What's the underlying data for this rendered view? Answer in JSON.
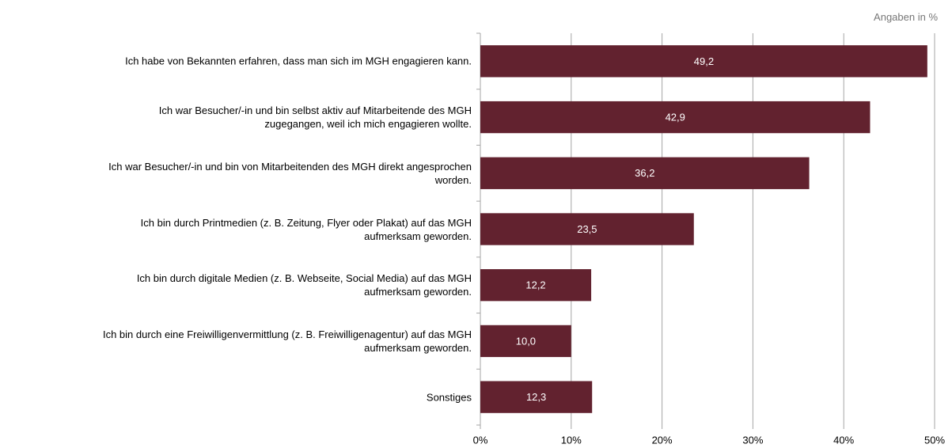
{
  "chart_data": {
    "type": "bar",
    "orientation": "horizontal",
    "note": "Angaben in %",
    "categories": [
      "Ich habe von Bekannten erfahren, dass man sich im MGH engagieren kann.",
      "Ich war Besucher/-in und bin selbst aktiv auf Mitarbeitende des MGH\nzugegangen, weil ich mich engagieren wollte.",
      "Ich war Besucher/-in und bin von Mitarbeitenden des MGH direkt angesprochen\nworden.",
      "Ich bin durch Printmedien (z. B. Zeitung, Flyer oder Plakat) auf das MGH\naufmerksam geworden.",
      "Ich bin durch digitale Medien (z. B. Webseite, Social Media) auf das MGH\naufmerksam geworden.",
      "Ich bin durch eine Freiwilligenvermittlung (z. B. Freiwilligenagentur) auf das MGH\naufmerksam geworden.",
      "Sonstiges"
    ],
    "values": [
      49.2,
      42.9,
      36.2,
      23.5,
      12.2,
      10.0,
      12.3
    ],
    "value_labels": [
      "49,2",
      "42,9",
      "36,2",
      "23,5",
      "12,2",
      "10,0",
      "12,3"
    ],
    "color": "#62222f",
    "xlim": [
      0,
      50
    ],
    "xticks": [
      {
        "value": 0,
        "label": "0%"
      },
      {
        "value": 10,
        "label": "10%"
      },
      {
        "value": 20,
        "label": "20%"
      },
      {
        "value": 30,
        "label": "30%"
      },
      {
        "value": 40,
        "label": "40%"
      },
      {
        "value": 50,
        "label": "50%"
      }
    ],
    "grid": true
  }
}
